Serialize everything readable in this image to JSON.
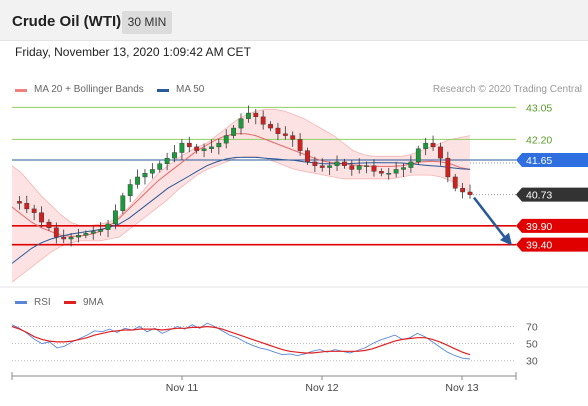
{
  "header": {
    "title": "Crude Oil (WTI)",
    "timeframe": "30 MIN"
  },
  "timestamp": "Friday, November 13, 2020 1:09:42 AM CET",
  "legend": {
    "price": [
      {
        "label": "MA 20 + Bollinger Bands",
        "color": "#f08080"
      },
      {
        "label": "MA 50",
        "color": "#2a5a9a"
      }
    ],
    "rsi": [
      {
        "label": "RSI",
        "color": "#5a86d8"
      },
      {
        "label": "9MA",
        "color": "#e02020"
      }
    ]
  },
  "watermark": "Research © 2020 Trading Central",
  "colors": {
    "resistance": "#8fcf60",
    "pivot": "#2a5a9a",
    "support": "#e00000",
    "current": "#333333",
    "arrow": "#2a5a9a"
  },
  "chart_data": [
    {
      "type": "candlestick",
      "title": "Crude Oil (WTI) 30 MIN",
      "ylim": [
        38.3,
        43.3
      ],
      "x_tick_labels": [
        "Nov 11",
        "Nov 12",
        "Nov 13"
      ],
      "levels": [
        {
          "value": 43.05,
          "label": "43.05",
          "kind": "resistance"
        },
        {
          "value": 42.2,
          "label": "42.20",
          "kind": "resistance"
        },
        {
          "value": 41.65,
          "label": "41.65",
          "kind": "pivot"
        },
        {
          "value": 40.73,
          "label": "40.73",
          "kind": "current"
        },
        {
          "value": 39.9,
          "label": "39.90",
          "kind": "support"
        },
        {
          "value": 39.4,
          "label": "39.40",
          "kind": "support"
        }
      ],
      "close_series": [
        40.55,
        40.5,
        40.35,
        40.25,
        40.0,
        39.85,
        39.6,
        39.55,
        39.6,
        39.65,
        39.7,
        39.75,
        39.8,
        39.95,
        40.3,
        40.7,
        41.0,
        41.2,
        41.3,
        41.4,
        41.55,
        41.7,
        41.85,
        42.1,
        42.0,
        41.9,
        41.95,
        42.0,
        42.1,
        42.3,
        42.5,
        42.75,
        42.9,
        42.8,
        42.6,
        42.5,
        42.35,
        42.3,
        42.2,
        41.9,
        41.6,
        41.5,
        41.45,
        41.5,
        41.6,
        41.5,
        41.4,
        41.5,
        41.5,
        41.35,
        41.3,
        41.3,
        41.4,
        41.45,
        41.6,
        41.95,
        42.1,
        42.0,
        41.7,
        41.2,
        40.9,
        40.8,
        40.73
      ],
      "bollinger_upper": [
        41.5,
        41.3,
        41.0,
        40.7,
        40.45,
        40.2,
        40.0,
        39.9,
        39.9,
        39.95,
        40.0,
        40.15,
        40.4,
        40.7,
        41.0,
        41.3,
        41.5,
        41.7,
        41.85,
        42.0,
        42.1,
        42.3,
        42.5,
        42.7,
        42.85,
        42.95,
        43.0,
        43.0,
        42.95,
        42.85,
        42.75,
        42.6,
        42.45,
        42.3,
        42.1,
        41.9,
        41.8,
        41.75,
        41.75,
        41.75,
        41.75,
        41.8,
        41.9,
        42.0,
        42.1,
        42.2,
        42.25,
        42.3
      ],
      "bollinger_lower": [
        38.4,
        38.6,
        38.8,
        39.0,
        39.2,
        39.35,
        39.45,
        39.5,
        39.5,
        39.5,
        39.55,
        39.6,
        39.8,
        40.0,
        40.2,
        40.4,
        40.6,
        40.85,
        41.05,
        41.25,
        41.4,
        41.5,
        41.6,
        41.7,
        41.75,
        41.75,
        41.7,
        41.6,
        41.5,
        41.4,
        41.35,
        41.3,
        41.25,
        41.2,
        41.15,
        41.15,
        41.15,
        41.15,
        41.15,
        41.15,
        41.2,
        41.25,
        41.25,
        41.25,
        41.2,
        41.1,
        40.95,
        40.8
      ],
      "ma20": [
        40.4,
        40.2,
        40.0,
        39.85,
        39.75,
        39.65,
        39.62,
        39.63,
        39.67,
        39.75,
        39.9,
        40.1,
        40.35,
        40.6,
        40.85,
        41.1,
        41.3,
        41.5,
        41.7,
        41.9,
        42.05,
        42.2,
        42.3,
        42.35,
        42.35,
        42.3,
        42.2,
        42.1,
        42.0,
        41.9,
        41.8,
        41.7,
        41.62,
        41.58,
        41.55,
        41.52,
        41.5,
        41.48,
        41.48,
        41.48,
        41.5,
        41.55,
        41.6,
        41.62,
        41.6,
        41.55,
        41.45,
        41.4
      ],
      "ma50": [
        38.9,
        39.1,
        39.3,
        39.45,
        39.55,
        39.62,
        39.68,
        39.72,
        39.76,
        39.8,
        39.86,
        39.95,
        40.1,
        40.3,
        40.5,
        40.7,
        40.9,
        41.05,
        41.2,
        41.35,
        41.5,
        41.6,
        41.68,
        41.72,
        41.72,
        41.72,
        41.7,
        41.68,
        41.66,
        41.64,
        41.6,
        41.58,
        41.55,
        41.55,
        41.55,
        41.56,
        41.57,
        41.58,
        41.58,
        41.58,
        41.57,
        41.55,
        41.52,
        41.5,
        41.48,
        41.45,
        41.42,
        41.4
      ]
    },
    {
      "type": "line",
      "title": "RSI",
      "ylim": [
        25,
        80
      ],
      "y_tick_labels": [
        "70",
        "50",
        "30"
      ],
      "y_ticks": [
        70,
        50,
        30
      ],
      "series": [
        {
          "name": "RSI",
          "values": [
            72,
            68,
            62,
            55,
            50,
            52,
            45,
            47,
            52,
            56,
            60,
            65,
            64,
            67,
            63,
            68,
            66,
            70,
            64,
            68,
            62,
            66,
            70,
            67,
            72,
            68,
            74,
            70,
            65,
            60,
            57,
            52,
            48,
            45,
            43,
            40,
            37,
            38,
            36,
            38,
            41,
            43,
            40,
            43,
            41,
            39,
            42,
            45,
            50,
            54,
            57,
            60,
            55,
            57,
            62,
            58,
            52,
            46,
            40,
            36,
            33,
            32
          ]
        },
        {
          "name": "9MA",
          "values": [
            70,
            67,
            63,
            58,
            55,
            53,
            52,
            52,
            53,
            55,
            57,
            60,
            62,
            64,
            65,
            66,
            66,
            67,
            67,
            67,
            66,
            67,
            68,
            68,
            69,
            69,
            70,
            69,
            67,
            64,
            61,
            58,
            55,
            52,
            49,
            46,
            43,
            41,
            40,
            39,
            39,
            40,
            41,
            41,
            41,
            41,
            41,
            42,
            44,
            47,
            50,
            53,
            55,
            56,
            57,
            57,
            55,
            52,
            48,
            44,
            40,
            37
          ]
        }
      ]
    }
  ]
}
